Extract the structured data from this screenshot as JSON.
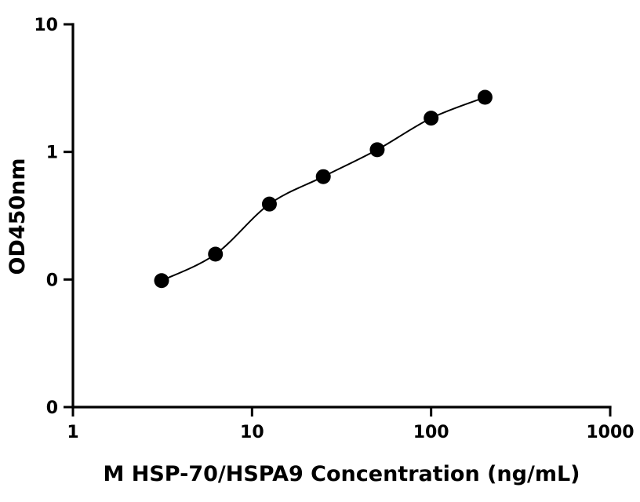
{
  "chart_data": {
    "type": "scatter",
    "title": "",
    "xlabel": "M HSP-70/HSPA9 Concentration (ng/mL)",
    "ylabel": "OD450nm",
    "xscale": "log",
    "yscale": "log",
    "xlim": [
      1,
      1000
    ],
    "ylim": [
      0.01,
      10
    ],
    "x_ticks": [
      1,
      10,
      100,
      1000
    ],
    "x_tick_labels": [
      "1",
      "10",
      "100",
      "1000"
    ],
    "y_ticks": [
      0.01,
      0.1,
      1,
      10
    ],
    "y_tick_labels": [
      "0",
      "0",
      "1",
      "10"
    ],
    "grid": false,
    "legend": "none",
    "series": [
      {
        "x": [
          3.125,
          6.25,
          12.5,
          25,
          50,
          100,
          200
        ],
        "y": [
          0.098,
          0.158,
          0.39,
          0.64,
          1.04,
          1.84,
          2.68
        ]
      }
    ],
    "fit_curve": "4PL",
    "colors": {
      "points": "#000000",
      "axes": "#000000"
    }
  }
}
